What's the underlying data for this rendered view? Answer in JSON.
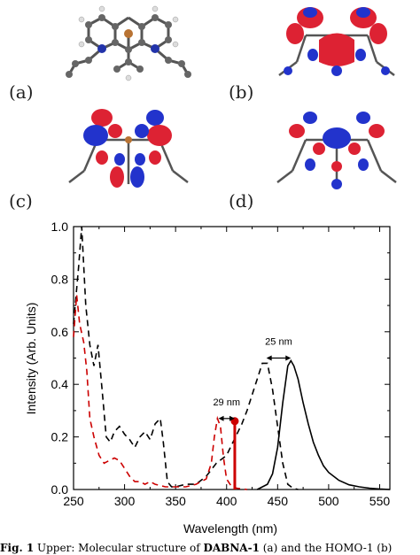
{
  "panels": {
    "a": "(a)",
    "b": "(b)",
    "c": "(c)",
    "d": "(d)"
  },
  "chart_data": {
    "type": "line",
    "xlabel": "Wavelength (nm)",
    "ylabel": "Intensity (Arb. Units)",
    "xlim": [
      250,
      560
    ],
    "ylim": [
      0.0,
      1.0
    ],
    "xticks": [
      250,
      300,
      350,
      400,
      450,
      500,
      550
    ],
    "yticks": [
      0.0,
      0.2,
      0.4,
      0.6,
      0.8,
      1.0
    ],
    "colors": {
      "black": "#000000",
      "red": "#cc0000"
    },
    "series": [
      {
        "style": "dashed-black",
        "x": [
          250,
          255,
          258,
          262,
          266,
          270,
          274,
          278,
          282,
          286,
          290,
          295,
          300,
          305,
          310,
          315,
          320,
          325,
          330,
          335,
          338,
          342,
          346,
          350,
          360,
          370,
          380,
          390,
          400,
          405,
          410,
          415,
          420,
          425,
          430,
          435,
          440,
          445,
          450,
          455,
          460,
          465,
          470
        ],
        "y": [
          0.63,
          0.85,
          1.0,
          0.7,
          0.55,
          0.47,
          0.55,
          0.38,
          0.2,
          0.18,
          0.22,
          0.24,
          0.21,
          0.19,
          0.16,
          0.2,
          0.22,
          0.19,
          0.25,
          0.27,
          0.18,
          0.03,
          0.01,
          0.01,
          0.02,
          0.02,
          0.05,
          0.1,
          0.13,
          0.17,
          0.21,
          0.25,
          0.3,
          0.36,
          0.42,
          0.48,
          0.48,
          0.38,
          0.24,
          0.1,
          0.02,
          0.005,
          0.0
        ]
      },
      {
        "style": "dashed-red",
        "x": [
          250,
          253,
          256,
          260,
          263,
          266,
          270,
          275,
          280,
          285,
          290,
          295,
          300,
          305,
          310,
          315,
          320,
          325,
          330,
          335,
          340,
          350,
          360,
          370,
          380,
          385,
          388,
          391,
          394,
          397,
          400,
          405,
          410,
          420
        ],
        "y": [
          0.58,
          0.74,
          0.63,
          0.56,
          0.45,
          0.27,
          0.2,
          0.13,
          0.1,
          0.11,
          0.12,
          0.11,
          0.08,
          0.05,
          0.03,
          0.03,
          0.02,
          0.03,
          0.02,
          0.015,
          0.01,
          0.01,
          0.01,
          0.02,
          0.04,
          0.1,
          0.2,
          0.27,
          0.24,
          0.12,
          0.04,
          0.01,
          0.005,
          0.0
        ]
      },
      {
        "style": "solid-black",
        "x": [
          430,
          440,
          445,
          450,
          455,
          460,
          463,
          466,
          470,
          475,
          480,
          485,
          490,
          495,
          500,
          510,
          520,
          530,
          540,
          550,
          560
        ],
        "y": [
          0.0,
          0.02,
          0.06,
          0.16,
          0.33,
          0.47,
          0.49,
          0.47,
          0.42,
          0.33,
          0.25,
          0.18,
          0.13,
          0.09,
          0.065,
          0.035,
          0.018,
          0.01,
          0.005,
          0.002,
          0.0
        ]
      }
    ],
    "stick": {
      "x": 408,
      "y": 0.26,
      "color": "#cc0000"
    },
    "annotations": [
      {
        "text": "29 nm",
        "x1": 392,
        "x2": 408,
        "y": 0.27,
        "text_y": 0.32
      },
      {
        "text": "25 nm",
        "x1": 439,
        "x2": 463,
        "y": 0.5,
        "text_y": 0.55
      }
    ]
  },
  "caption": {
    "prefix": "Fig. 1",
    "text_a": " Upper: Molecular structure of ",
    "compound": "DABNA-1",
    "text_b": " (a) and the HOMO-1 (b)"
  }
}
